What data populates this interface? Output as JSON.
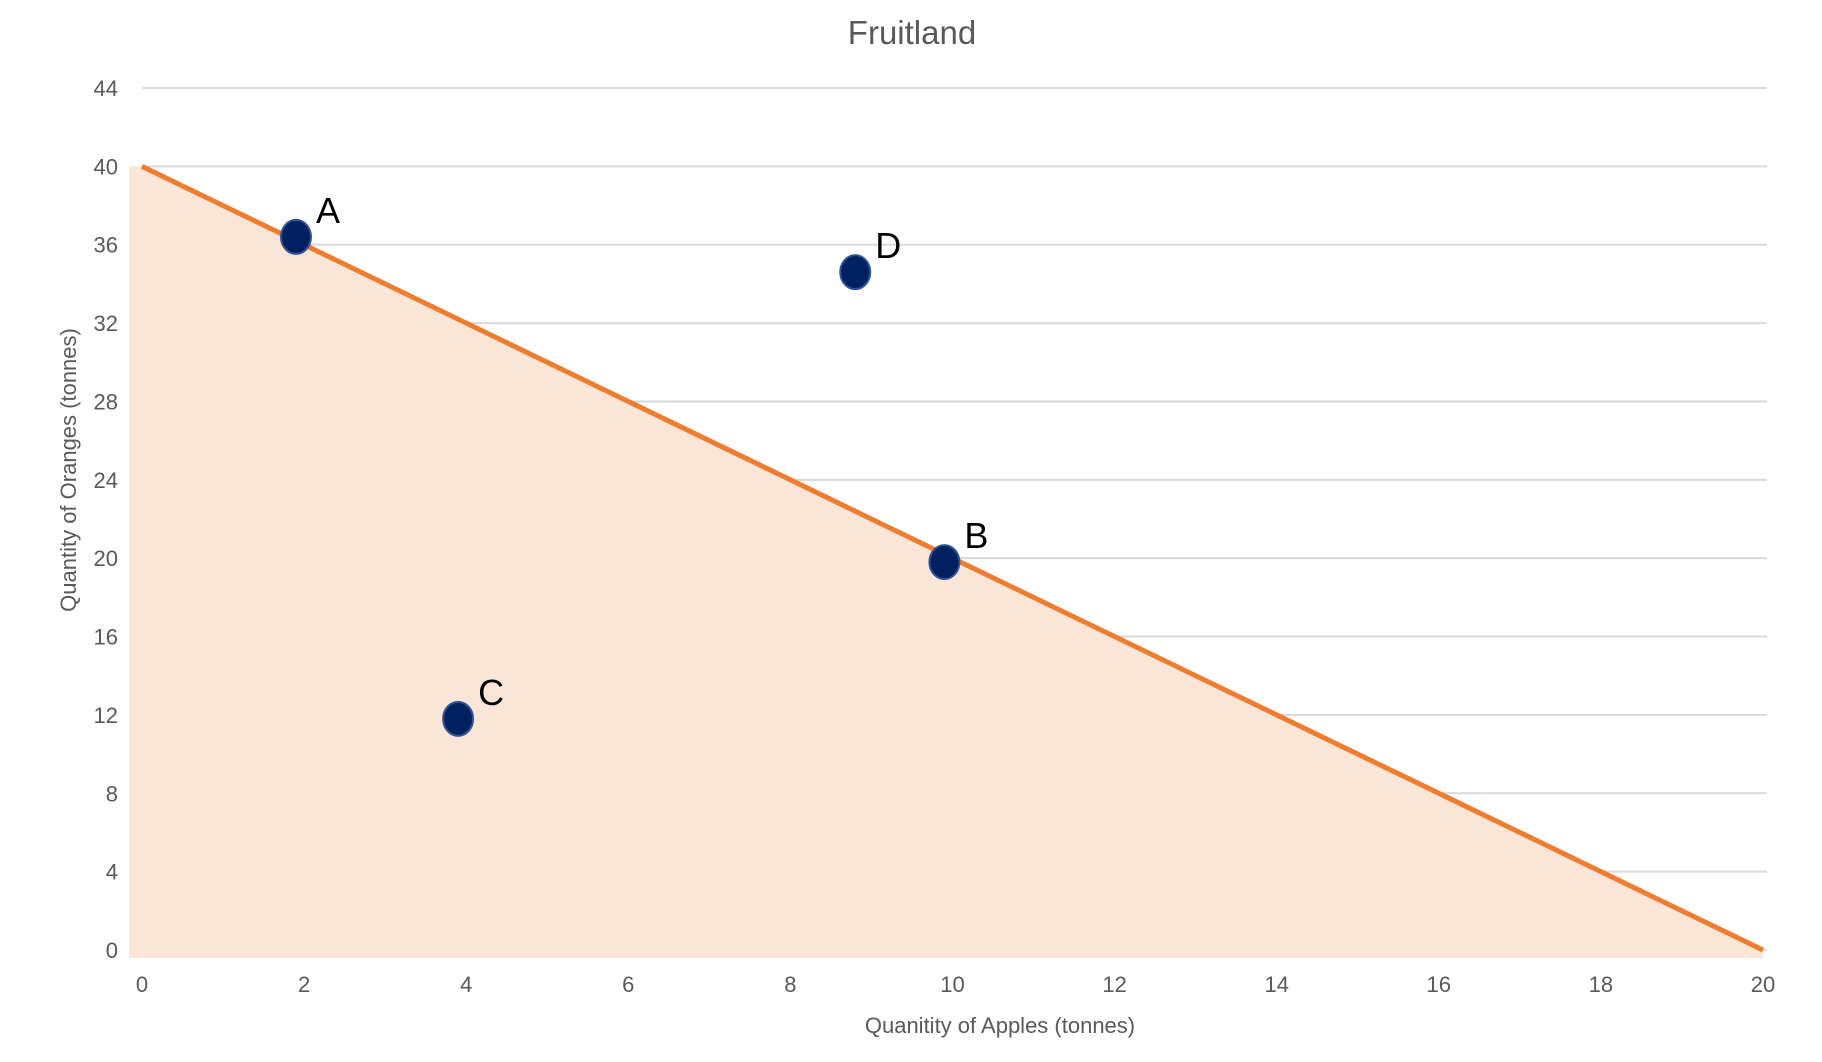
{
  "chart_data": {
    "type": "area",
    "title": "Fruitland",
    "xlabel": "Quanitity of Apples (tonnes)",
    "ylabel": "Quantity of Oranges (tonnes)",
    "xlim": [
      0,
      20
    ],
    "ylim": [
      0,
      44
    ],
    "xticks": [
      0,
      2,
      4,
      6,
      8,
      10,
      12,
      14,
      16,
      18,
      20
    ],
    "yticks": [
      0,
      4,
      8,
      12,
      16,
      20,
      24,
      28,
      32,
      36,
      40,
      44
    ],
    "grid": "horizontal",
    "frontier": {
      "x": [
        0,
        20
      ],
      "y": [
        40,
        0
      ]
    },
    "points": [
      {
        "label": "A",
        "x": 1.9,
        "y": 36.4
      },
      {
        "label": "D",
        "x": 8.8,
        "y": 34.6
      },
      {
        "label": "B",
        "x": 9.9,
        "y": 19.8
      },
      {
        "label": "C",
        "x": 3.9,
        "y": 11.8
      }
    ],
    "colors": {
      "line": "#ED7D31",
      "fill": "#FBE5D6",
      "points": "#002060",
      "grid": "#D9D9D9"
    }
  }
}
